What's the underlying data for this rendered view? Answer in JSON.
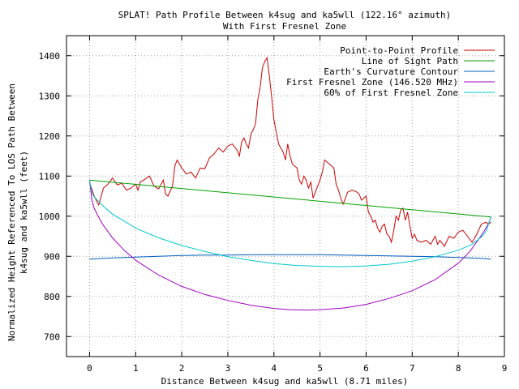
{
  "chart_data": {
    "type": "line",
    "title": "SPLAT! Path Profile Between k4sug and ka5wll (122.16° azimuth)",
    "subtitle": "With First Fresnel Zone",
    "xlabel": "Distance Between k4sug and ka5wll (8.71 miles)",
    "ylabel_line1": "Normalized Height Referenced To LOS Path Between",
    "ylabel_line2": "k4sug and ka5wll (feet)",
    "xlim": [
      -0.5,
      9
    ],
    "ylim": [
      650,
      1450
    ],
    "x_ticks": [
      0,
      1,
      2,
      3,
      4,
      5,
      6,
      7,
      8,
      9
    ],
    "x_tick_labels": [
      "0",
      "1",
      "2",
      "3",
      "4",
      "5",
      "6",
      "7",
      "8",
      "9"
    ],
    "y_ticks": [
      700,
      800,
      900,
      1000,
      1100,
      1200,
      1300,
      1400
    ],
    "y_tick_labels": [
      "700",
      "800",
      "900",
      "1000",
      "1100",
      "1200",
      "1300",
      "1400"
    ],
    "grid": true,
    "legend_position": "top-right",
    "series": [
      {
        "name": "Point-to-Point Profile",
        "color": "#cc0000",
        "points": [
          [
            0,
            1085
          ],
          [
            0.1,
            1050
          ],
          [
            0.2,
            1028
          ],
          [
            0.3,
            1070
          ],
          [
            0.4,
            1080
          ],
          [
            0.5,
            1095
          ],
          [
            0.6,
            1078
          ],
          [
            0.7,
            1082
          ],
          [
            0.8,
            1065
          ],
          [
            0.9,
            1070
          ],
          [
            1.0,
            1080
          ],
          [
            1.05,
            1065
          ],
          [
            1.1,
            1085
          ],
          [
            1.2,
            1092
          ],
          [
            1.3,
            1100
          ],
          [
            1.4,
            1075
          ],
          [
            1.5,
            1068
          ],
          [
            1.6,
            1090
          ],
          [
            1.65,
            1055
          ],
          [
            1.7,
            1050
          ],
          [
            1.8,
            1075
          ],
          [
            1.85,
            1125
          ],
          [
            1.9,
            1140
          ],
          [
            2.0,
            1120
          ],
          [
            2.1,
            1105
          ],
          [
            2.2,
            1110
          ],
          [
            2.3,
            1095
          ],
          [
            2.4,
            1120
          ],
          [
            2.5,
            1118
          ],
          [
            2.6,
            1145
          ],
          [
            2.7,
            1155
          ],
          [
            2.8,
            1170
          ],
          [
            2.9,
            1160
          ],
          [
            3.0,
            1175
          ],
          [
            3.1,
            1180
          ],
          [
            3.2,
            1165
          ],
          [
            3.25,
            1150
          ],
          [
            3.3,
            1185
          ],
          [
            3.35,
            1195
          ],
          [
            3.4,
            1180
          ],
          [
            3.45,
            1170
          ],
          [
            3.5,
            1205
          ],
          [
            3.55,
            1215
          ],
          [
            3.6,
            1230
          ],
          [
            3.65,
            1290
          ],
          [
            3.7,
            1320
          ],
          [
            3.75,
            1370
          ],
          [
            3.8,
            1385
          ],
          [
            3.85,
            1395
          ],
          [
            3.9,
            1350
          ],
          [
            3.95,
            1300
          ],
          [
            4.0,
            1240
          ],
          [
            4.05,
            1210
          ],
          [
            4.1,
            1180
          ],
          [
            4.2,
            1160
          ],
          [
            4.25,
            1140
          ],
          [
            4.3,
            1180
          ],
          [
            4.35,
            1150
          ],
          [
            4.4,
            1130
          ],
          [
            4.5,
            1120
          ],
          [
            4.55,
            1090
          ],
          [
            4.6,
            1080
          ],
          [
            4.65,
            1100
          ],
          [
            4.7,
            1090
          ],
          [
            4.75,
            1070
          ],
          [
            4.8,
            1085
          ],
          [
            4.85,
            1045
          ],
          [
            4.9,
            1060
          ],
          [
            5.0,
            1090
          ],
          [
            5.05,
            1110
          ],
          [
            5.1,
            1140
          ],
          [
            5.2,
            1130
          ],
          [
            5.3,
            1120
          ],
          [
            5.35,
            1080
          ],
          [
            5.4,
            1065
          ],
          [
            5.45,
            1045
          ],
          [
            5.5,
            1030
          ],
          [
            5.55,
            1045
          ],
          [
            5.6,
            1060
          ],
          [
            5.7,
            1065
          ],
          [
            5.8,
            1060
          ],
          [
            5.85,
            1055
          ],
          [
            5.9,
            1040
          ],
          [
            6.0,
            1050
          ],
          [
            6.05,
            1010
          ],
          [
            6.1,
            1000
          ],
          [
            6.15,
            985
          ],
          [
            6.2,
            990
          ],
          [
            6.25,
            970
          ],
          [
            6.3,
            960
          ],
          [
            6.35,
            975
          ],
          [
            6.4,
            980
          ],
          [
            6.45,
            955
          ],
          [
            6.5,
            950
          ],
          [
            6.55,
            935
          ],
          [
            6.6,
            965
          ],
          [
            6.65,
            1000
          ],
          [
            6.7,
            990
          ],
          [
            6.75,
            1015
          ],
          [
            6.8,
            1020
          ],
          [
            6.85,
            990
          ],
          [
            6.9,
            1010
          ],
          [
            6.95,
            975
          ],
          [
            7.0,
            945
          ],
          [
            7.05,
            955
          ],
          [
            7.1,
            940
          ],
          [
            7.2,
            935
          ],
          [
            7.3,
            940
          ],
          [
            7.4,
            930
          ],
          [
            7.5,
            950
          ],
          [
            7.55,
            930
          ],
          [
            7.6,
            940
          ],
          [
            7.7,
            925
          ],
          [
            7.8,
            950
          ],
          [
            7.9,
            945
          ],
          [
            8.0,
            960
          ],
          [
            8.1,
            965
          ],
          [
            8.2,
            950
          ],
          [
            8.3,
            935
          ],
          [
            8.35,
            945
          ],
          [
            8.4,
            955
          ],
          [
            8.5,
            980
          ],
          [
            8.6,
            985
          ],
          [
            8.65,
            980
          ],
          [
            8.71,
            985
          ]
        ]
      },
      {
        "name": "Line of Sight Path",
        "color": "#00a000",
        "points": [
          [
            0,
            1090
          ],
          [
            8.71,
            998
          ]
        ]
      },
      {
        "name": "Earth's Curvature Contour",
        "color": "#0060c0",
        "points": [
          [
            0,
            893
          ],
          [
            0.5,
            896
          ],
          [
            1,
            898
          ],
          [
            1.5,
            900
          ],
          [
            2,
            902
          ],
          [
            2.5,
            903
          ],
          [
            3,
            903
          ],
          [
            3.5,
            904
          ],
          [
            4,
            904
          ],
          [
            4.5,
            904
          ],
          [
            5,
            904
          ],
          [
            5.5,
            903
          ],
          [
            6,
            902
          ],
          [
            6.5,
            901
          ],
          [
            7,
            900
          ],
          [
            7.5,
            899
          ],
          [
            8,
            897
          ],
          [
            8.5,
            895
          ],
          [
            8.71,
            893
          ]
        ]
      },
      {
        "name": "First Fresnel Zone (146.520 MHz)",
        "color": "#a000c0",
        "points": [
          [
            0,
            1090
          ],
          [
            0.05,
            1040
          ],
          [
            0.1,
            1020
          ],
          [
            0.2,
            997
          ],
          [
            0.3,
            977
          ],
          [
            0.5,
            946
          ],
          [
            0.75,
            915
          ],
          [
            1.0,
            890
          ],
          [
            1.5,
            853
          ],
          [
            2.0,
            825
          ],
          [
            2.5,
            805
          ],
          [
            3.0,
            790
          ],
          [
            3.5,
            778
          ],
          [
            4.0,
            770
          ],
          [
            4.35,
            767
          ],
          [
            4.7,
            766
          ],
          [
            5.0,
            767
          ],
          [
            5.5,
            771
          ],
          [
            6.0,
            780
          ],
          [
            6.5,
            795
          ],
          [
            7.0,
            814
          ],
          [
            7.5,
            842
          ],
          [
            8.0,
            883
          ],
          [
            8.25,
            912
          ],
          [
            8.5,
            952
          ],
          [
            8.6,
            970
          ],
          [
            8.66,
            983
          ],
          [
            8.71,
            998
          ]
        ]
      },
      {
        "name": "60% of First Fresnel Zone",
        "color": "#00c8d0",
        "points": [
          [
            0,
            1090
          ],
          [
            0.05,
            1058
          ],
          [
            0.1,
            1048
          ],
          [
            0.3,
            1025
          ],
          [
            0.5,
            1005
          ],
          [
            0.75,
            988
          ],
          [
            1.0,
            970
          ],
          [
            1.5,
            946
          ],
          [
            2.0,
            927
          ],
          [
            2.5,
            912
          ],
          [
            3.0,
            899
          ],
          [
            3.5,
            890
          ],
          [
            4.0,
            882
          ],
          [
            4.5,
            877
          ],
          [
            5.0,
            875
          ],
          [
            5.5,
            874
          ],
          [
            6.0,
            876
          ],
          [
            6.5,
            880
          ],
          [
            7.0,
            888
          ],
          [
            7.5,
            899
          ],
          [
            8.0,
            915
          ],
          [
            8.3,
            930
          ],
          [
            8.5,
            948
          ],
          [
            8.6,
            962
          ],
          [
            8.71,
            998
          ]
        ]
      }
    ]
  }
}
